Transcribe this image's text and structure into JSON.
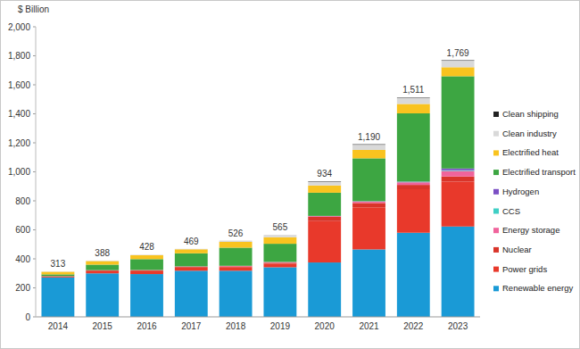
{
  "chart_data": {
    "type": "bar",
    "stacked": true,
    "grid": false,
    "legend": "right",
    "y_label": "$ Billion",
    "categories": [
      "2014",
      "2015",
      "2016",
      "2017",
      "2018",
      "2019",
      "2020",
      "2021",
      "2022",
      "2023"
    ],
    "ylim": [
      0,
      2000
    ],
    "yticks": [
      0,
      200,
      400,
      600,
      800,
      {
        "value": 1000,
        "label": "1,000"
      },
      {
        "value": 1200,
        "label": "1,200"
      },
      {
        "value": 1400,
        "label": "1,400"
      },
      {
        "value": 1600,
        "label": "1,600"
      },
      {
        "value": 1800,
        "label": "1,800"
      },
      {
        "value": 2000,
        "label": "2,000"
      }
    ],
    "totals": [
      313,
      388,
      428,
      469,
      526,
      565,
      934,
      1190,
      1511,
      1769
    ],
    "total_labels": [
      "313",
      "388",
      "428",
      "469",
      "526",
      "565",
      "934",
      "1,190",
      "1,511",
      "1,769"
    ],
    "series": [
      {
        "name": "Renewable energy",
        "color": "#1a9ad6",
        "values": [
          272,
          300,
          295,
          318,
          318,
          342,
          375,
          465,
          580,
          623
        ]
      },
      {
        "name": "Power grids",
        "color": "#e8392b",
        "values": [
          5,
          15,
          20,
          22,
          25,
          25,
          285,
          290,
          300,
          310
        ]
      },
      {
        "name": "Nuclear",
        "color": "#d9342a",
        "values": [
          3,
          5,
          5,
          5,
          5,
          6,
          30,
          30,
          30,
          35
        ]
      },
      {
        "name": "Energy storage",
        "color": "#f0649c",
        "values": [
          1,
          2,
          3,
          3,
          4,
          5,
          5,
          10,
          18,
          38
        ]
      },
      {
        "name": "CCS",
        "color": "#3fcfc5",
        "values": [
          0,
          0,
          0,
          0,
          0,
          1,
          1,
          2,
          3,
          5
        ]
      },
      {
        "name": "Hydrogen",
        "color": "#7b4fc4",
        "values": [
          0,
          0,
          0,
          0,
          0,
          0,
          0,
          1,
          2,
          12
        ]
      },
      {
        "name": "Electrified transport",
        "color": "#3da642",
        "values": [
          12,
          38,
          75,
          90,
          125,
          125,
          160,
          295,
          470,
          636
        ]
      },
      {
        "name": "Electrified heat",
        "color": "#f9c31f",
        "values": [
          18,
          25,
          27,
          28,
          40,
          45,
          50,
          58,
          65,
          62
        ]
      },
      {
        "name": "Clean industry",
        "color": "#d9d9d9",
        "values": [
          2,
          3,
          3,
          3,
          9,
          16,
          25,
          36,
          40,
          45
        ]
      },
      {
        "name": "Clean shipping",
        "color": "#222222",
        "values": [
          0,
          0,
          0,
          0,
          0,
          0,
          3,
          3,
          3,
          3
        ]
      }
    ]
  }
}
